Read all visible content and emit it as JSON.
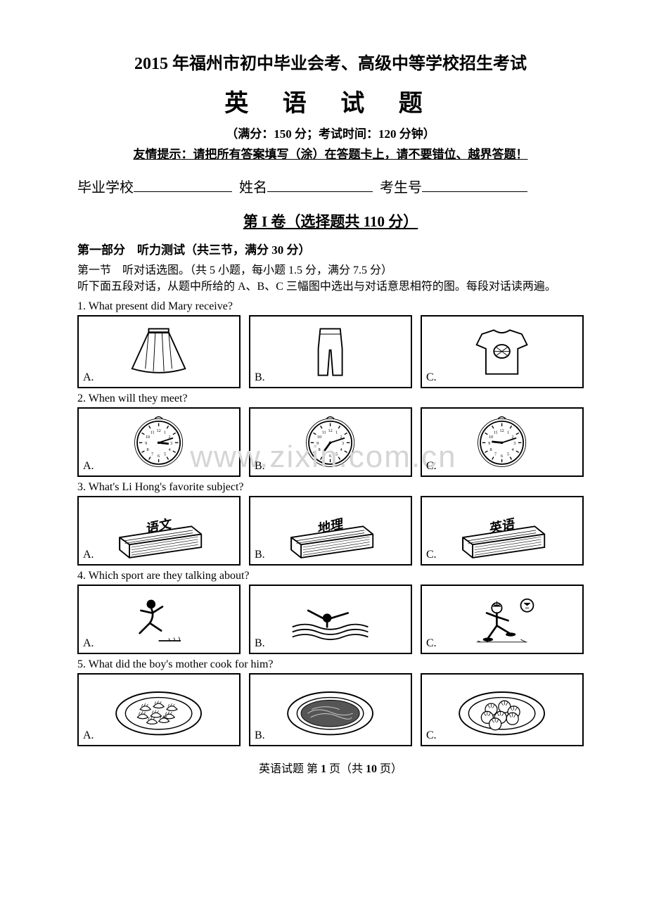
{
  "header": {
    "title_main": "2015 年福州市初中毕业会考、高级中等学校招生考试",
    "title_sub": "英 语 试 题",
    "exam_info": "（满分：150 分；考试时间：120 分钟）",
    "warning": "友情提示：请把所有答案填写（涂）在答题卡上，请不要错位、越界答题！"
  },
  "student": {
    "school_label": "毕业学校",
    "name_label": "姓名",
    "id_label": "考生号"
  },
  "section": {
    "volume_header": "第 I 卷（选择题共 110 分）",
    "part_header": "第一部分　听力测试（共三节，满分 30 分）",
    "subpart": "第一节　听对话选图。（共 5 小题，每小题 1.5 分，满分 7.5 分）",
    "instruction": "听下面五段对话，从题中所给的 A、B、C 三幅图中选出与对话意思相符的图。每段对话读两遍。"
  },
  "questions": [
    {
      "num": "1.",
      "text": "What present did Mary receive?",
      "options": [
        "A.",
        "B.",
        "C."
      ],
      "types": [
        "skirt",
        "pants",
        "tshirt"
      ]
    },
    {
      "num": "2.",
      "text": "When will they meet?",
      "options": [
        "A.",
        "B.",
        "C."
      ],
      "types": [
        "clock",
        "clock",
        "clock"
      ],
      "clock_times": [
        [
          3,
          12
        ],
        [
          7,
          12
        ],
        [
          9,
          12
        ]
      ]
    },
    {
      "num": "3.",
      "text": "What's Li Hong's favorite subject?",
      "options": [
        "A.",
        "B.",
        "C."
      ],
      "types": [
        "book",
        "book",
        "book"
      ],
      "book_labels": [
        "语文",
        "地理",
        "英语"
      ]
    },
    {
      "num": "4.",
      "text": "Which sport are they talking about?",
      "options": [
        "A.",
        "B.",
        "C."
      ],
      "types": [
        "running",
        "swimming",
        "football"
      ]
    },
    {
      "num": "5.",
      "text": "What did the boy's mother cook for him?",
      "options": [
        "A.",
        "B.",
        "C."
      ],
      "types": [
        "dumplings",
        "noodles",
        "buns"
      ]
    }
  ],
  "watermark": "www.zixin.com.cn",
  "footer": {
    "prefix": "英语试题 第 ",
    "page_current": "1",
    "middle": " 页（共 ",
    "page_total": "10",
    "suffix": " 页）"
  },
  "colors": {
    "text": "#000000",
    "background": "#ffffff",
    "border": "#000000",
    "watermark": "#d5d5d5"
  }
}
